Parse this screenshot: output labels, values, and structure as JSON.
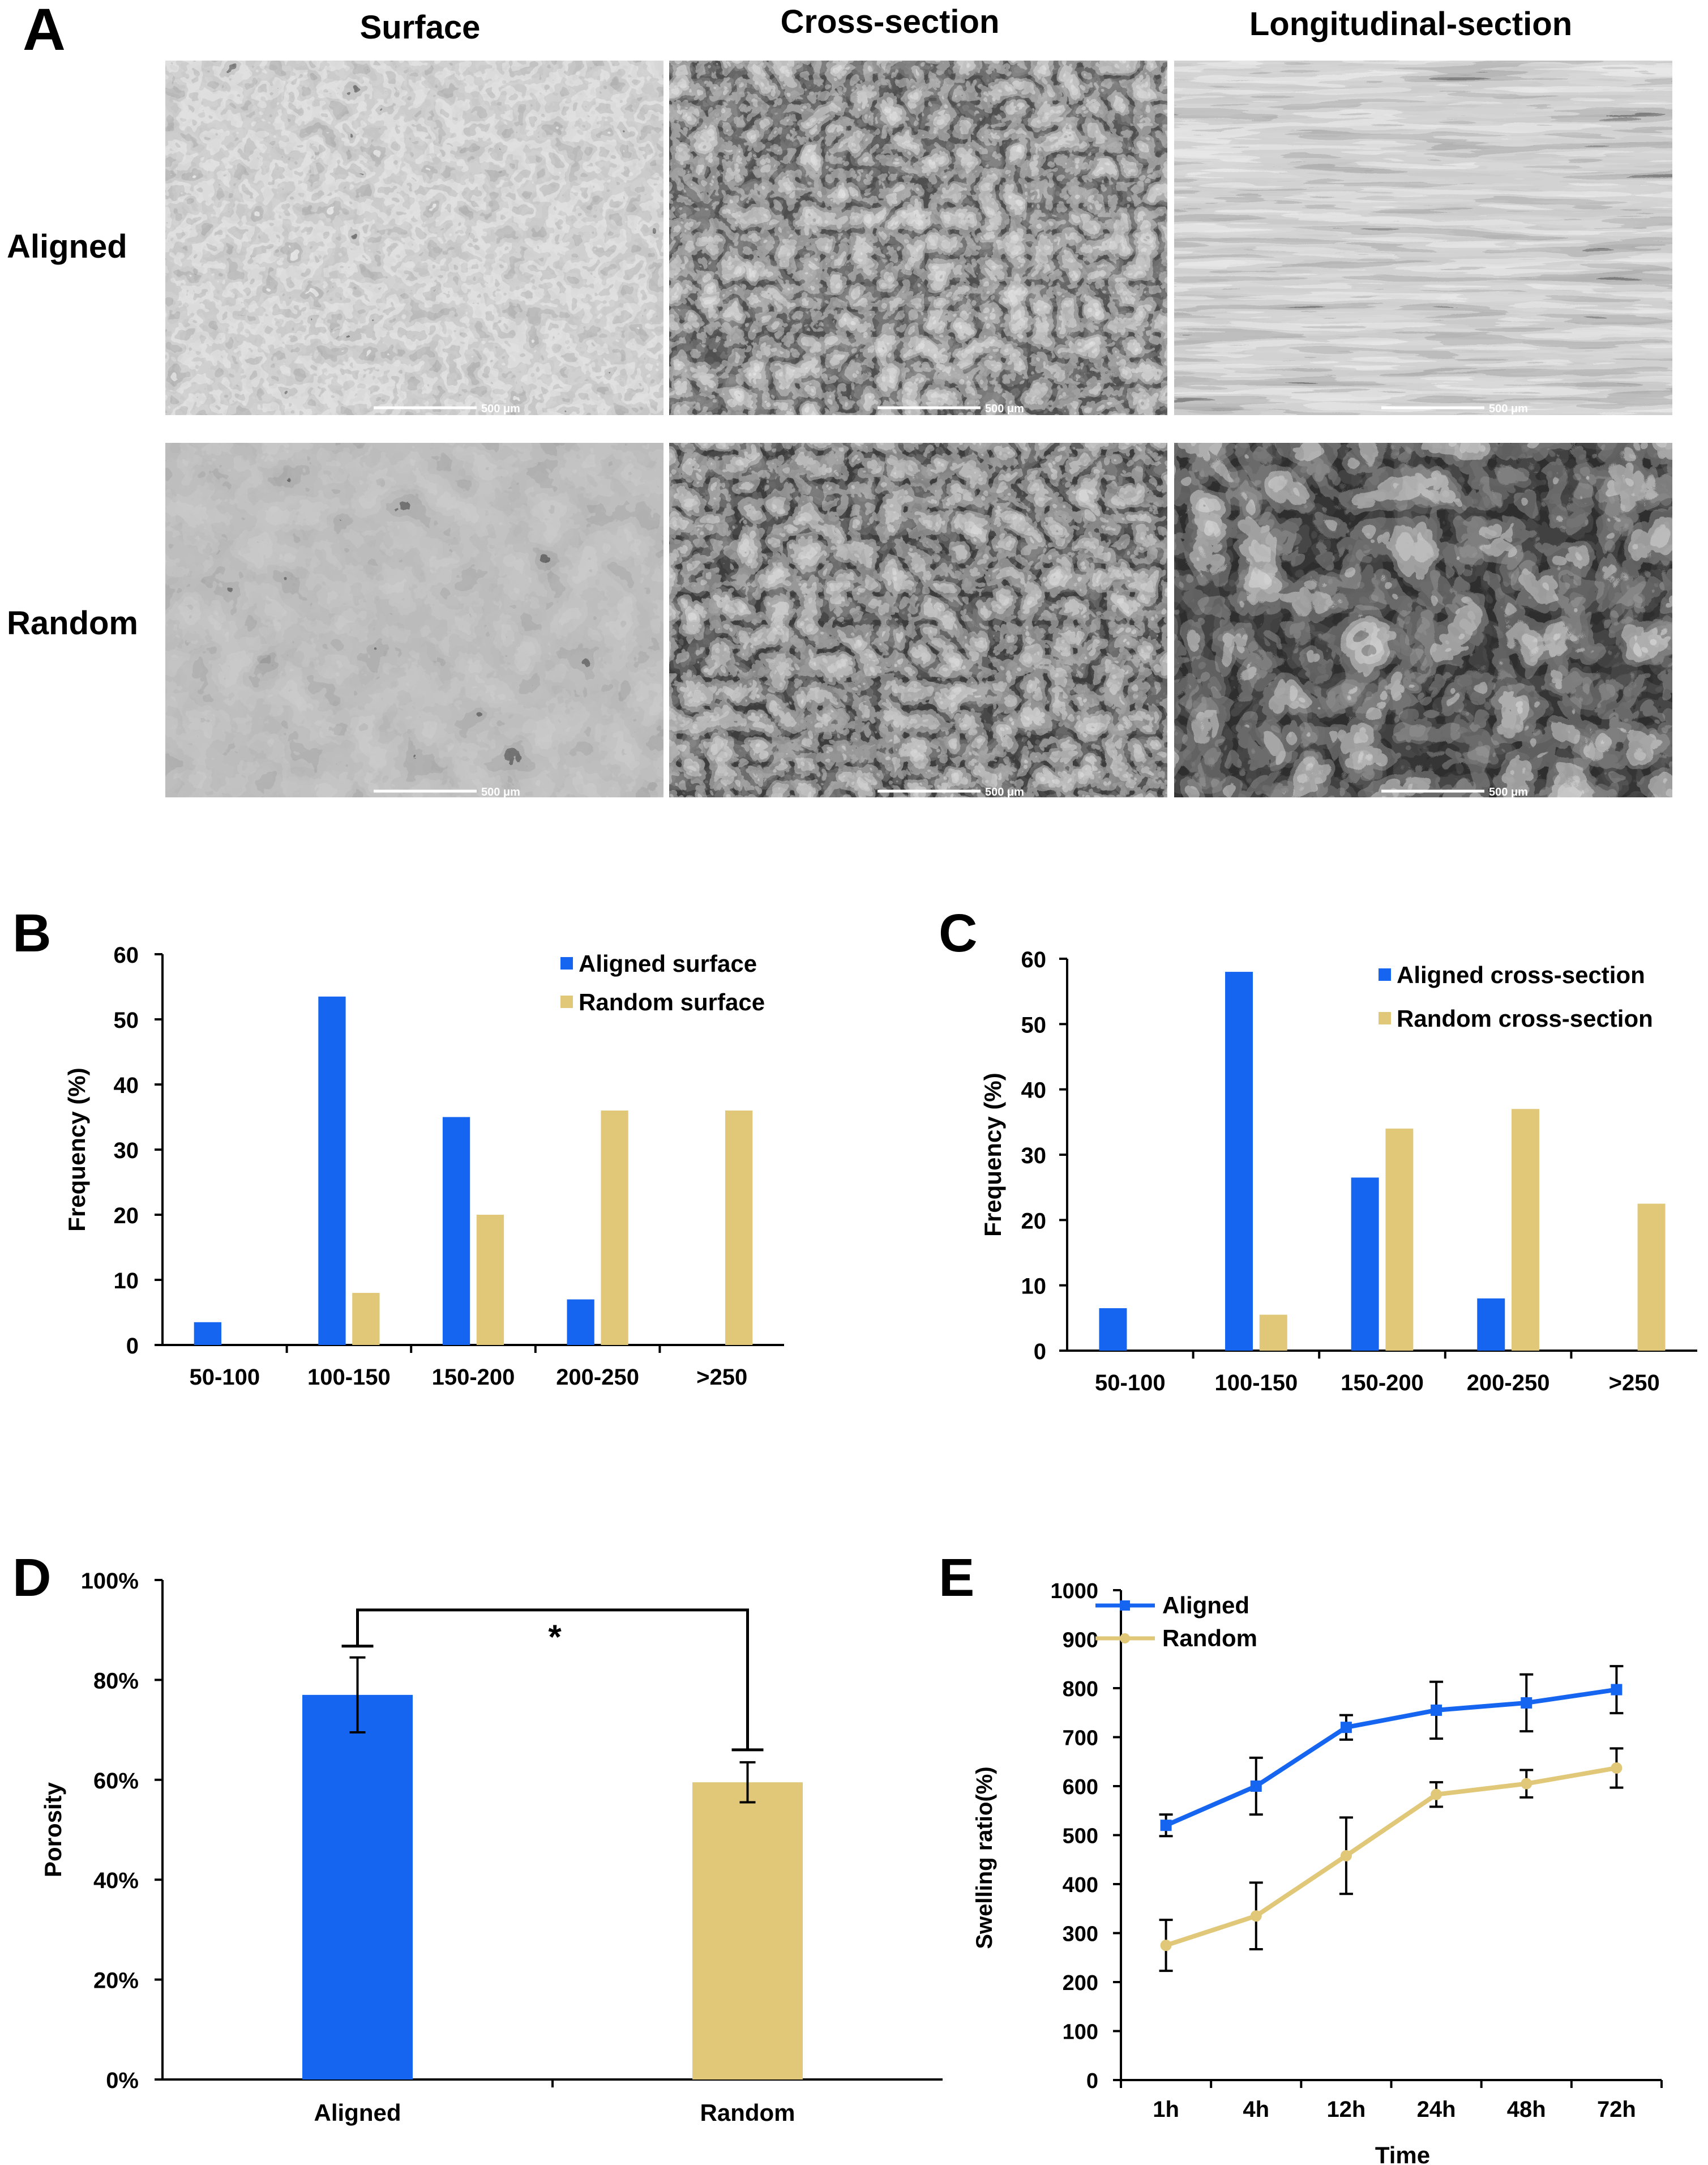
{
  "panel_labels": {
    "A": "A",
    "B": "B",
    "C": "C",
    "D": "D",
    "E": "E"
  },
  "sem": {
    "columns": [
      "Surface",
      "Cross-section",
      "Longitudinal-section"
    ],
    "rows": [
      "Aligned",
      "Random"
    ],
    "scale_bar_label": "500 μm"
  },
  "colors": {
    "aligned": "#1565F0",
    "random": "#E0C878",
    "axis": "#000000"
  },
  "chart_data": [
    {
      "id": "B",
      "type": "bar",
      "title": "",
      "xlabel": "",
      "ylabel": "Frequency (%)",
      "ylim": [
        0,
        60
      ],
      "yticks": [
        0,
        10,
        20,
        30,
        40,
        50,
        60
      ],
      "categories": [
        "50-100",
        "100-150",
        "150-200",
        "200-250",
        ">250"
      ],
      "series": [
        {
          "name": "Aligned surface",
          "color": "#1565F0",
          "values": [
            3.5,
            53.5,
            35,
            7,
            0
          ]
        },
        {
          "name": "Random surface",
          "color": "#E0C878",
          "values": [
            0,
            8,
            20,
            36,
            36
          ]
        }
      ],
      "legend": "top-right"
    },
    {
      "id": "C",
      "type": "bar",
      "title": "",
      "xlabel": "",
      "ylabel": "Frequency (%)",
      "ylim": [
        0,
        60
      ],
      "yticks": [
        0,
        10,
        20,
        30,
        40,
        50,
        60
      ],
      "categories": [
        "50-100",
        "100-150",
        "150-200",
        "200-250",
        ">250"
      ],
      "series": [
        {
          "name": "Aligned cross-section",
          "color": "#1565F0",
          "values": [
            6.5,
            58,
            26.5,
            8,
            0
          ]
        },
        {
          "name": "Random cross-section",
          "color": "#E0C878",
          "values": [
            0,
            5.5,
            34,
            37,
            22.5
          ]
        }
      ],
      "legend": "top-right"
    },
    {
      "id": "D",
      "type": "bar",
      "title": "",
      "xlabel": "",
      "ylabel": "Porosity",
      "ylim": [
        0,
        100
      ],
      "yticks": [
        "0%",
        "20%",
        "40%",
        "60%",
        "80%",
        "100%"
      ],
      "categories": [
        "Aligned",
        "Random"
      ],
      "values": [
        77,
        59.5
      ],
      "errors": [
        7.5,
        4
      ],
      "colors": [
        "#1565F0",
        "#E0C878"
      ],
      "significance": "*"
    },
    {
      "id": "E",
      "type": "line",
      "title": "",
      "xlabel": "Time",
      "ylabel": "Swelling ratio(%)",
      "ylim": [
        0,
        1000
      ],
      "yticks": [
        0,
        100,
        200,
        300,
        400,
        500,
        600,
        700,
        800,
        900,
        1000
      ],
      "x": [
        "1h",
        "4h",
        "12h",
        "24h",
        "48h",
        "72h"
      ],
      "series": [
        {
          "name": "Aligned",
          "color": "#1565F0",
          "marker": "square",
          "values": [
            520,
            600,
            720,
            755,
            770,
            797
          ],
          "errors": [
            22,
            58,
            25,
            58,
            58,
            48
          ]
        },
        {
          "name": "Random",
          "color": "#E0C878",
          "marker": "circle",
          "values": [
            275,
            335,
            458,
            583,
            605,
            637
          ],
          "errors": [
            52,
            68,
            78,
            25,
            28,
            40
          ]
        }
      ],
      "legend": "top-left"
    }
  ]
}
